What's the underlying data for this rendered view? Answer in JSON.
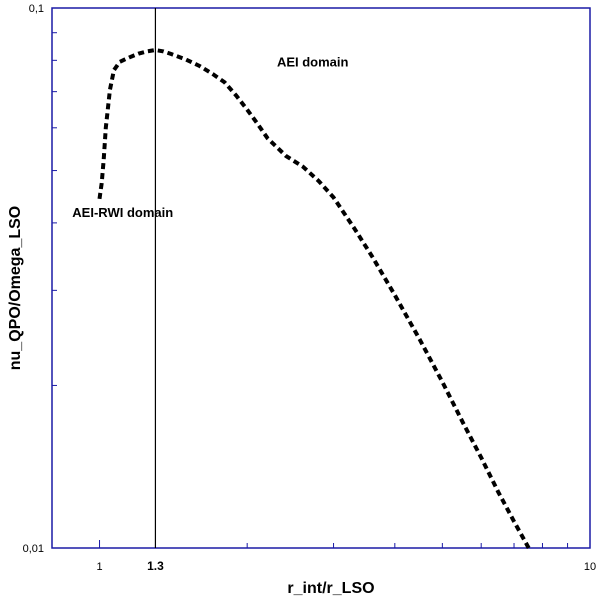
{
  "chart_data": {
    "type": "line",
    "xlabel": "r_int/r_LSO",
    "ylabel": "nu_QPO/Omega_LSO",
    "xscale": "log",
    "yscale": "log",
    "xlim": [
      0.8,
      10
    ],
    "ylim": [
      0.01,
      0.1
    ],
    "x_tick_labels": [
      {
        "value": 1,
        "label": "1"
      },
      {
        "value": 1.3,
        "label": "1.3",
        "bold": true
      },
      {
        "value": 10,
        "label": "10"
      }
    ],
    "y_tick_labels": [
      {
        "value": 0.01,
        "label": "0,01"
      },
      {
        "value": 0.1,
        "label": "0,1"
      }
    ],
    "grid": false,
    "frame_color": "#1a1aa6",
    "line_color": "#000000",
    "reference_line": {
      "x": 1.3,
      "color": "#000000"
    },
    "annotations": [
      {
        "text": "AEI domain",
        "x": 2.3,
        "y": 0.078
      },
      {
        "text": "AEI-RWI domain",
        "x": 0.88,
        "y": 0.041
      }
    ],
    "series": [
      {
        "style": "dashed",
        "x": [
          1.0,
          1.01,
          1.02,
          1.03,
          1.05,
          1.07,
          1.1,
          1.15,
          1.2,
          1.25,
          1.3,
          1.35,
          1.4,
          1.5,
          1.6,
          1.7,
          1.8,
          1.9,
          2.0,
          2.1,
          2.2,
          2.4,
          2.6,
          2.8,
          3.0,
          3.3,
          3.6,
          4.0,
          4.5,
          5.0,
          5.5,
          6.0,
          6.5,
          7.0,
          7.5
        ],
        "y": [
          0.0443,
          0.0474,
          0.0524,
          0.06,
          0.0705,
          0.0767,
          0.0795,
          0.081,
          0.0823,
          0.0831,
          0.0836,
          0.0831,
          0.0822,
          0.0803,
          0.0781,
          0.0755,
          0.0728,
          0.0688,
          0.0648,
          0.061,
          0.0574,
          0.0532,
          0.0508,
          0.0478,
          0.0446,
          0.0392,
          0.0346,
          0.0294,
          0.0243,
          0.0203,
          0.0171,
          0.0147,
          0.0127,
          0.0112,
          0.01
        ]
      }
    ]
  }
}
